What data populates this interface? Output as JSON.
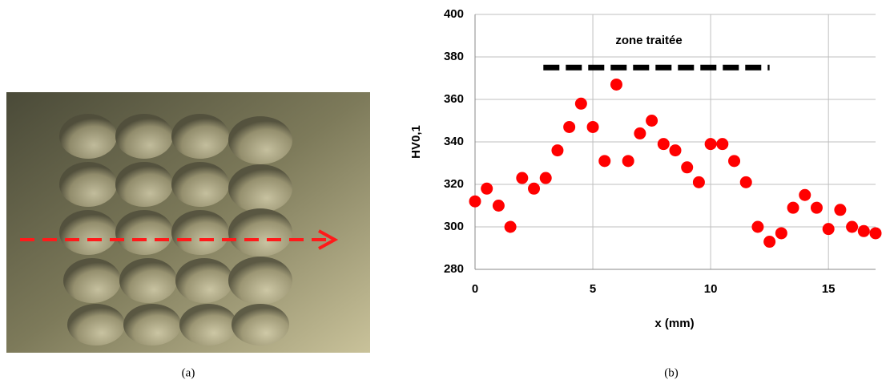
{
  "captions": [
    "(a)",
    "(b)"
  ],
  "chart_data": {
    "type": "scatter",
    "annotation": "zone traitée",
    "x_label": "x (mm)",
    "y_label": "HV0,1",
    "series": [
      {
        "name": "HV0,1",
        "color": "#ff0000",
        "x": [
          0,
          0.5,
          1,
          1.5,
          2,
          2.5,
          3,
          3.5,
          4,
          4.5,
          5,
          5.5,
          6,
          6.5,
          7,
          7.5,
          8,
          8.5,
          9,
          9.5,
          10,
          10.5,
          11,
          11.5,
          12,
          12.5,
          13,
          13.5,
          14,
          14.5,
          15,
          15.5,
          16,
          16.5,
          17
        ],
        "values": [
          312,
          318,
          310,
          300,
          323,
          318,
          323,
          336,
          347,
          358,
          347,
          331,
          367,
          331,
          344,
          350,
          339,
          336,
          328,
          321,
          339,
          339,
          331,
          321,
          300,
          293,
          297,
          309,
          315,
          309,
          299,
          308,
          300,
          298,
          297
        ]
      }
    ],
    "zone_x": [
      2.9,
      12.5
    ],
    "zone_y": 375,
    "xlim": [
      0,
      17
    ],
    "ylim": [
      280,
      400
    ],
    "xticks": [
      0,
      5,
      10,
      15
    ],
    "yticks": [
      280,
      300,
      320,
      340,
      360,
      380,
      400
    ],
    "grid": true
  }
}
